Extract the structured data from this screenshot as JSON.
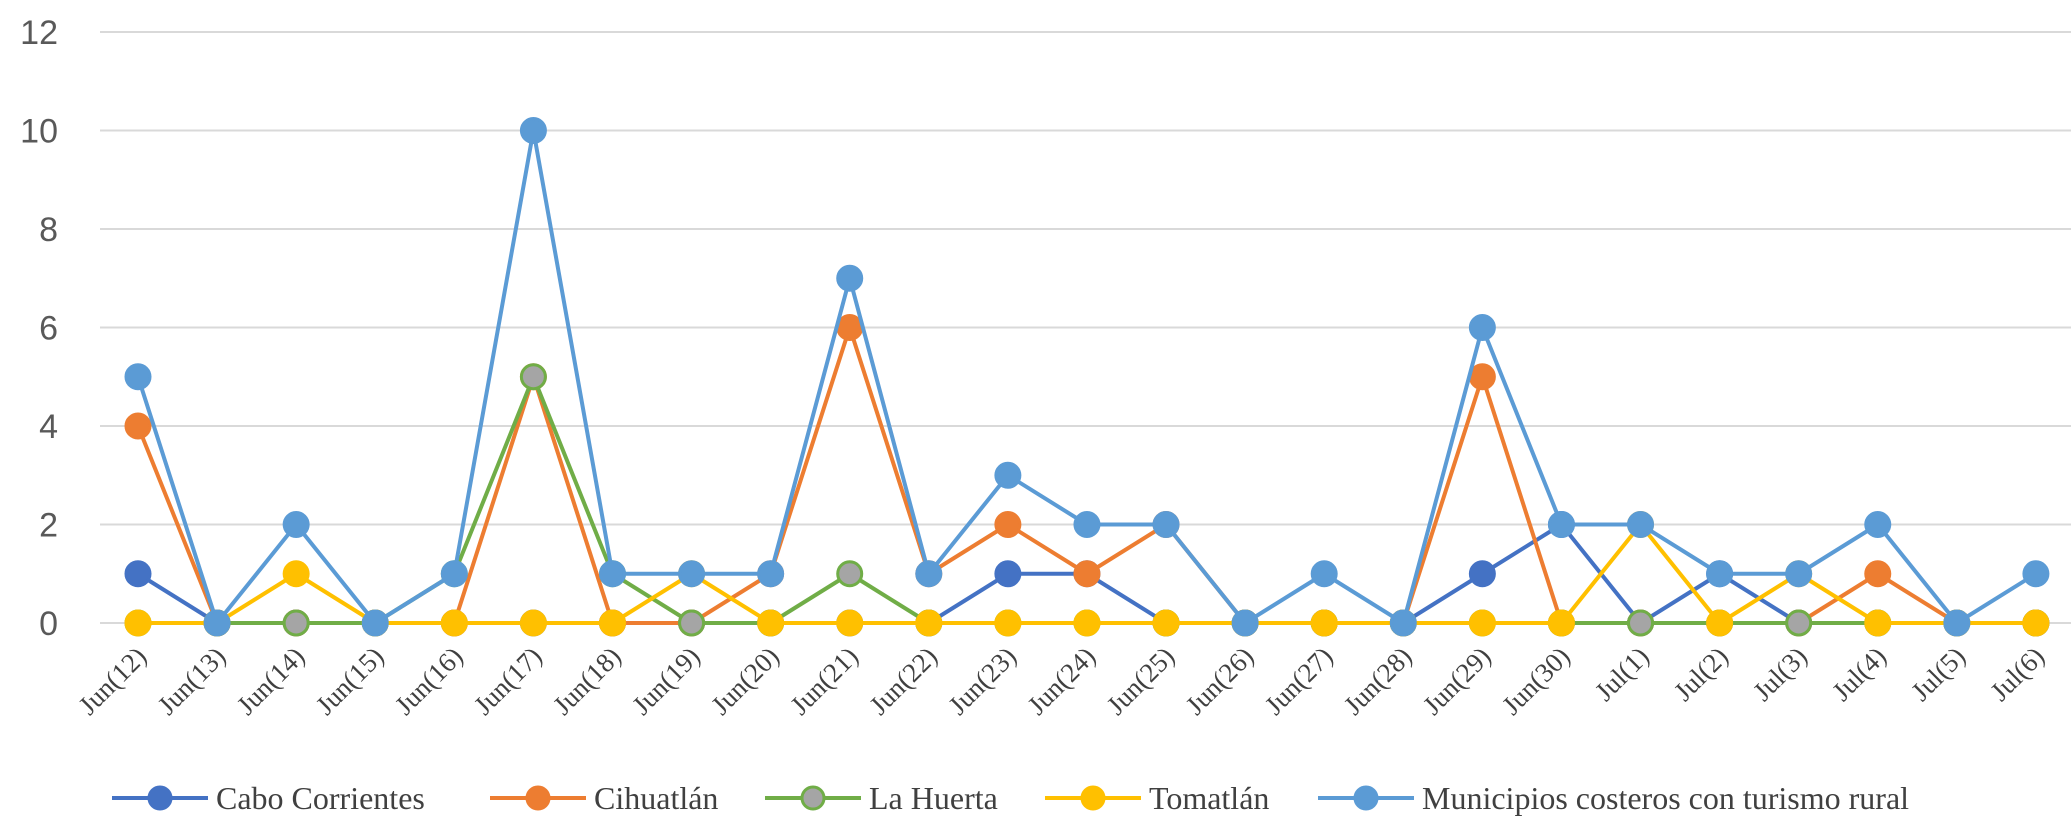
{
  "chart_data": {
    "type": "line",
    "title": "",
    "xlabel": "",
    "ylabel": "",
    "ylim": [
      0,
      12
    ],
    "yticks": [
      "0",
      "2",
      "4",
      "6",
      "8",
      "10",
      "12"
    ],
    "grid": true,
    "legend_position": "bottom",
    "categories": [
      "Jun(12)",
      "Jun(13)",
      "Jun(14)",
      "Jun(15)",
      "Jun(16)",
      "Jun(17)",
      "Jun(18)",
      "Jun(19)",
      "Jun(20)",
      "Jun(21)",
      "Jun(22)",
      "Jun(23)",
      "Jun(24)",
      "Jun(25)",
      "Jun(26)",
      "Jun(27)",
      "Jun(28)",
      "Jun(29)",
      "Jun(30)",
      "Jul(1)",
      "Jul(2)",
      "Jul(3)",
      "Jul(4)",
      "Jul(5)",
      "Jul(6)"
    ],
    "series": [
      {
        "name": "Cabo Corrientes",
        "color": "#4472C4",
        "marker_fill": "#4472C4",
        "values": [
          1,
          0,
          0,
          0,
          0,
          0,
          0,
          0,
          0,
          0,
          0,
          1,
          1,
          0,
          0,
          0,
          0,
          1,
          2,
          0,
          1,
          0,
          0,
          0,
          0
        ]
      },
      {
        "name": "Cihuatlán",
        "color": "#ED7D31",
        "marker_fill": "#ED7D31",
        "values": [
          4,
          0,
          0,
          0,
          0,
          5,
          0,
          0,
          1,
          6,
          1,
          2,
          1,
          2,
          0,
          0,
          0,
          5,
          0,
          0,
          0,
          0,
          1,
          0,
          0
        ]
      },
      {
        "name": "La Huerta",
        "color": "#70AD47",
        "marker_fill": "#A5A5A5",
        "values": [
          0,
          0,
          0,
          0,
          1,
          5,
          1,
          0,
          0,
          1,
          0,
          0,
          0,
          0,
          0,
          0,
          0,
          0,
          0,
          0,
          0,
          0,
          0,
          0,
          0
        ]
      },
      {
        "name": "Tomatlán",
        "color": "#FFC000",
        "marker_fill": "#FFC000",
        "values": [
          0,
          0,
          1,
          0,
          0,
          0,
          0,
          1,
          0,
          0,
          0,
          0,
          0,
          0,
          0,
          0,
          0,
          0,
          0,
          2,
          0,
          1,
          0,
          0,
          0
        ]
      },
      {
        "name": "Municipios costeros con turismo rural",
        "color": "#5B9BD5",
        "marker_fill": "#5B9BD5",
        "values": [
          5,
          0,
          2,
          0,
          1,
          10,
          1,
          1,
          1,
          7,
          1,
          3,
          2,
          2,
          0,
          1,
          0,
          6,
          2,
          2,
          1,
          1,
          2,
          0,
          1
        ]
      }
    ]
  }
}
